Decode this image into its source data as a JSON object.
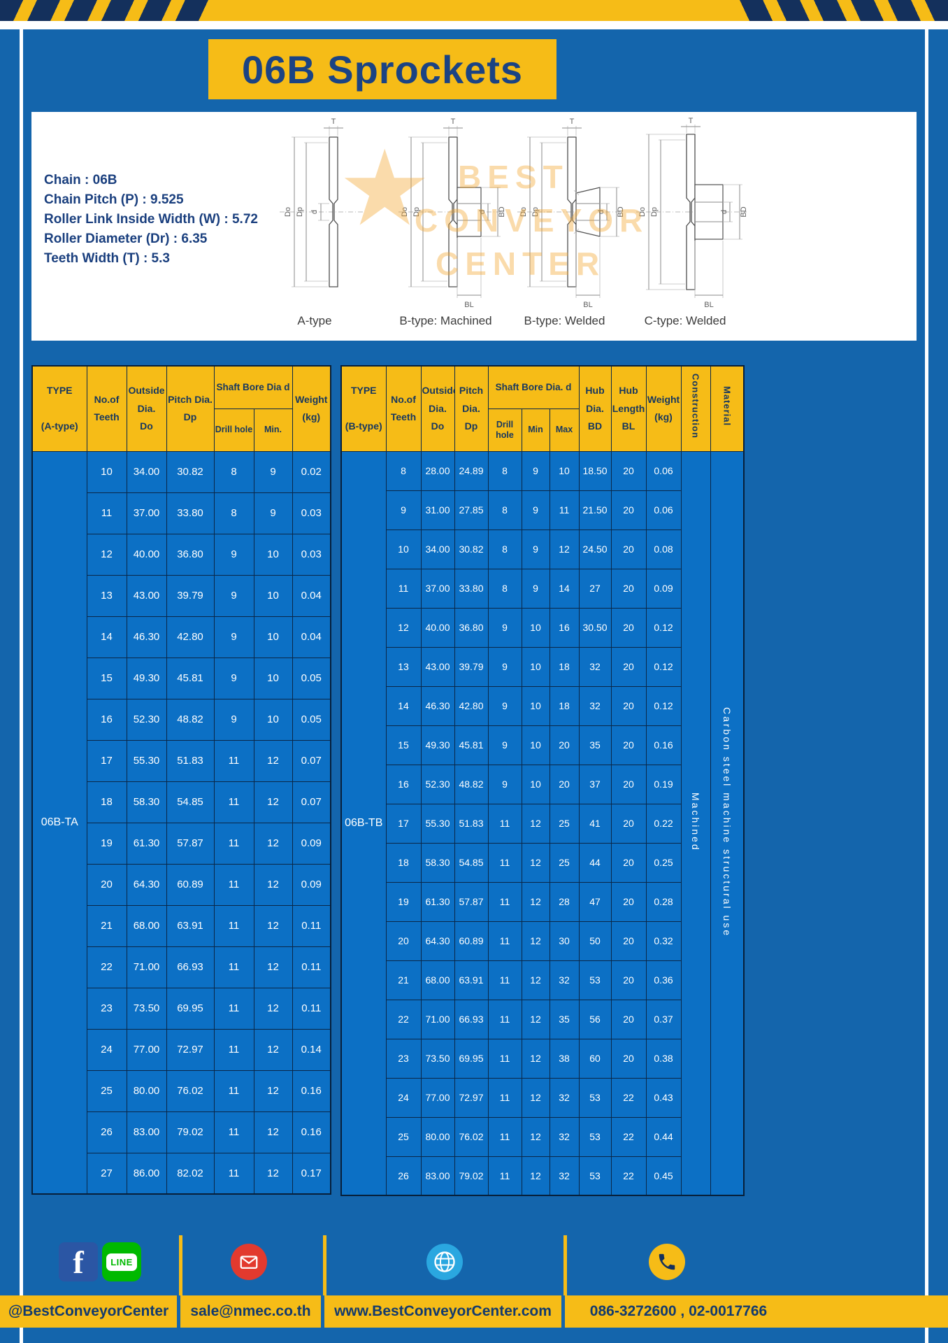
{
  "colors": {
    "page_blue": "#1465ac",
    "cell_blue": "#0c70c5",
    "accent_yellow": "#f6bc17",
    "navy": "#14305c"
  },
  "header": {
    "title": "06B Sprockets"
  },
  "specs": {
    "lines": [
      "Chain : 06B",
      "Chain Pitch (P) : 9.525",
      "Roller Link Inside Width (W) : 5.72",
      "Roller Diameter (Dr) : 6.35",
      "Teeth Width (T) : 5.3"
    ]
  },
  "diagrams": {
    "captions": [
      "A-type",
      "B-type: Machined",
      "B-type: Welded",
      "C-type: Welded"
    ],
    "dim_labels": {
      "t": "T",
      "outer": "Do",
      "pitch": "Dp",
      "bore": "d",
      "hub": "BD",
      "hub_len": "BL"
    },
    "watermark": {
      "line1": "BEST",
      "line2": "CONVEYOR",
      "line3": "CENTER",
      "star": "★"
    }
  },
  "table_a": {
    "headers": {
      "type": "TYPE\n\n(A-type)",
      "teeth": "No.of\nTeeth",
      "outside": "Outside\nDia.\nDo",
      "pitch": "Pitch Dia.\nDp",
      "bore_group": "Shaft Bore Dia d",
      "drill": "Drill hole",
      "min": "Min.",
      "weight": "Weight\n(kg)"
    },
    "type_value": "06B-TA",
    "rows": [
      [
        "10",
        "34.00",
        "30.82",
        "8",
        "9",
        "0.02"
      ],
      [
        "11",
        "37.00",
        "33.80",
        "8",
        "9",
        "0.03"
      ],
      [
        "12",
        "40.00",
        "36.80",
        "9",
        "10",
        "0.03"
      ],
      [
        "13",
        "43.00",
        "39.79",
        "9",
        "10",
        "0.04"
      ],
      [
        "14",
        "46.30",
        "42.80",
        "9",
        "10",
        "0.04"
      ],
      [
        "15",
        "49.30",
        "45.81",
        "9",
        "10",
        "0.05"
      ],
      [
        "16",
        "52.30",
        "48.82",
        "9",
        "10",
        "0.05"
      ],
      [
        "17",
        "55.30",
        "51.83",
        "11",
        "12",
        "0.07"
      ],
      [
        "18",
        "58.30",
        "54.85",
        "11",
        "12",
        "0.07"
      ],
      [
        "19",
        "61.30",
        "57.87",
        "11",
        "12",
        "0.09"
      ],
      [
        "20",
        "64.30",
        "60.89",
        "11",
        "12",
        "0.09"
      ],
      [
        "21",
        "68.00",
        "63.91",
        "11",
        "12",
        "0.11"
      ],
      [
        "22",
        "71.00",
        "66.93",
        "11",
        "12",
        "0.11"
      ],
      [
        "23",
        "73.50",
        "69.95",
        "11",
        "12",
        "0.11"
      ],
      [
        "24",
        "77.00",
        "72.97",
        "11",
        "12",
        "0.14"
      ],
      [
        "25",
        "80.00",
        "76.02",
        "11",
        "12",
        "0.16"
      ],
      [
        "26",
        "83.00",
        "79.02",
        "11",
        "12",
        "0.16"
      ],
      [
        "27",
        "86.00",
        "82.02",
        "11",
        "12",
        "0.17"
      ]
    ]
  },
  "table_b": {
    "headers": {
      "type": "TYPE\n\n(B-type)",
      "teeth": "No.of\nTeeth",
      "outside": "Outside\nDia.\nDo",
      "pitch": "Pitch\nDia.\nDp",
      "bore_group": "Shaft Bore Dia. d",
      "drill": "Drill hole",
      "min": "Min",
      "max": "Max",
      "hub_dia": "Hub\nDia.\nBD",
      "hub_len": "Hub\nLength\nBL",
      "weight": "Weight\n(kg)",
      "construction": "Construction",
      "material": "Material"
    },
    "type_value": "06B-TB",
    "construction_value": "Machined",
    "material_value": "Carbon steel machine structural use",
    "rows": [
      [
        "8",
        "28.00",
        "24.89",
        "8",
        "9",
        "10",
        "18.50",
        "20",
        "0.06"
      ],
      [
        "9",
        "31.00",
        "27.85",
        "8",
        "9",
        "11",
        "21.50",
        "20",
        "0.06"
      ],
      [
        "10",
        "34.00",
        "30.82",
        "8",
        "9",
        "12",
        "24.50",
        "20",
        "0.08"
      ],
      [
        "11",
        "37.00",
        "33.80",
        "8",
        "9",
        "14",
        "27",
        "20",
        "0.09"
      ],
      [
        "12",
        "40.00",
        "36.80",
        "9",
        "10",
        "16",
        "30.50",
        "20",
        "0.12"
      ],
      [
        "13",
        "43.00",
        "39.79",
        "9",
        "10",
        "18",
        "32",
        "20",
        "0.12"
      ],
      [
        "14",
        "46.30",
        "42.80",
        "9",
        "10",
        "18",
        "32",
        "20",
        "0.12"
      ],
      [
        "15",
        "49.30",
        "45.81",
        "9",
        "10",
        "20",
        "35",
        "20",
        "0.16"
      ],
      [
        "16",
        "52.30",
        "48.82",
        "9",
        "10",
        "20",
        "37",
        "20",
        "0.19"
      ],
      [
        "17",
        "55.30",
        "51.83",
        "11",
        "12",
        "25",
        "41",
        "20",
        "0.22"
      ],
      [
        "18",
        "58.30",
        "54.85",
        "11",
        "12",
        "25",
        "44",
        "20",
        "0.25"
      ],
      [
        "19",
        "61.30",
        "57.87",
        "11",
        "12",
        "28",
        "47",
        "20",
        "0.28"
      ],
      [
        "20",
        "64.30",
        "60.89",
        "11",
        "12",
        "30",
        "50",
        "20",
        "0.32"
      ],
      [
        "21",
        "68.00",
        "63.91",
        "11",
        "12",
        "32",
        "53",
        "20",
        "0.36"
      ],
      [
        "22",
        "71.00",
        "66.93",
        "11",
        "12",
        "35",
        "56",
        "20",
        "0.37"
      ],
      [
        "23",
        "73.50",
        "69.95",
        "11",
        "12",
        "38",
        "60",
        "20",
        "0.38"
      ],
      [
        "24",
        "77.00",
        "72.97",
        "11",
        "12",
        "32",
        "53",
        "22",
        "0.43"
      ],
      [
        "25",
        "80.00",
        "76.02",
        "11",
        "12",
        "32",
        "53",
        "22",
        "0.44"
      ],
      [
        "26",
        "83.00",
        "79.02",
        "11",
        "12",
        "32",
        "53",
        "22",
        "0.45"
      ]
    ]
  },
  "footer": {
    "facebook_letter": "f",
    "line_label": "LINE",
    "social_handle": "@BestConveyorCenter",
    "email": "sale@nmec.co.th",
    "website": "www.BestConveyorCenter.com",
    "phone": "086-3272600 , 02-0017766"
  }
}
